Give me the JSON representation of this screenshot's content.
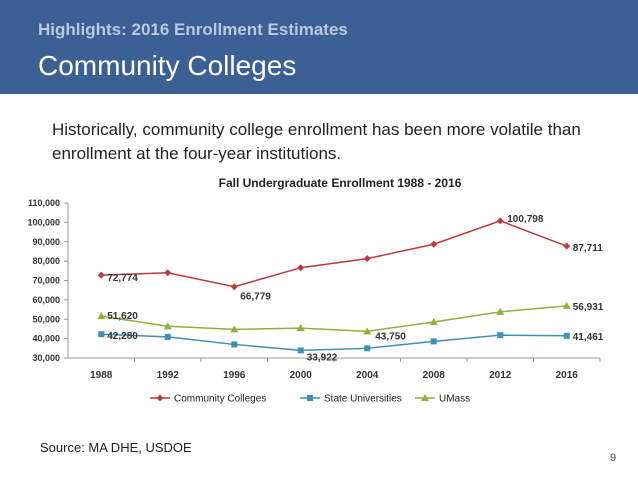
{
  "header": {
    "subtitle": "Highlights: 2016 Enrollment Estimates",
    "title": "Community Colleges"
  },
  "intro": "Historically, community college enrollment has been more volatile than enrollment at the four-year institutions.",
  "source": "Source: MA DHE, USDOE",
  "page_number": "9",
  "colors": {
    "banner": "#3c5f94",
    "community": "#c0393b",
    "state": "#3f8fb5",
    "umass": "#8fb03b"
  },
  "chart_data": {
    "type": "line",
    "title": "Fall Undergraduate Enrollment 1988 - 2016",
    "categories": [
      "1988",
      "1992",
      "1996",
      "2000",
      "2004",
      "2008",
      "2012",
      "2016"
    ],
    "ylim": [
      30000,
      110000
    ],
    "yticks": [
      "30,000",
      "40,000",
      "50,000",
      "60,000",
      "70,000",
      "80,000",
      "90,000",
      "100,000",
      "110,000"
    ],
    "legend_position": "bottom",
    "series": [
      {
        "name": "Community Colleges",
        "marker": "diamond",
        "color": "#c0393b",
        "values": [
          72774,
          74000,
          66779,
          76600,
          81300,
          88700,
          100798,
          87711
        ],
        "labels": [
          "72,774",
          "",
          "66,779",
          "",
          "",
          "",
          "100,798",
          "87,711"
        ]
      },
      {
        "name": "State Universities",
        "marker": "square",
        "color": "#3f8fb5",
        "values": [
          42280,
          40900,
          37000,
          33922,
          35000,
          38600,
          41800,
          41461
        ],
        "labels": [
          "42,280",
          "",
          "",
          "33,922",
          "",
          "",
          "",
          "41,461"
        ]
      },
      {
        "name": "UMass",
        "marker": "triangle",
        "color": "#8fb03b",
        "values": [
          51620,
          46400,
          44800,
          45400,
          43750,
          48600,
          53800,
          56931
        ],
        "labels": [
          "51,620",
          "",
          "",
          "",
          "43,750",
          "",
          "",
          "56,931"
        ]
      }
    ]
  }
}
